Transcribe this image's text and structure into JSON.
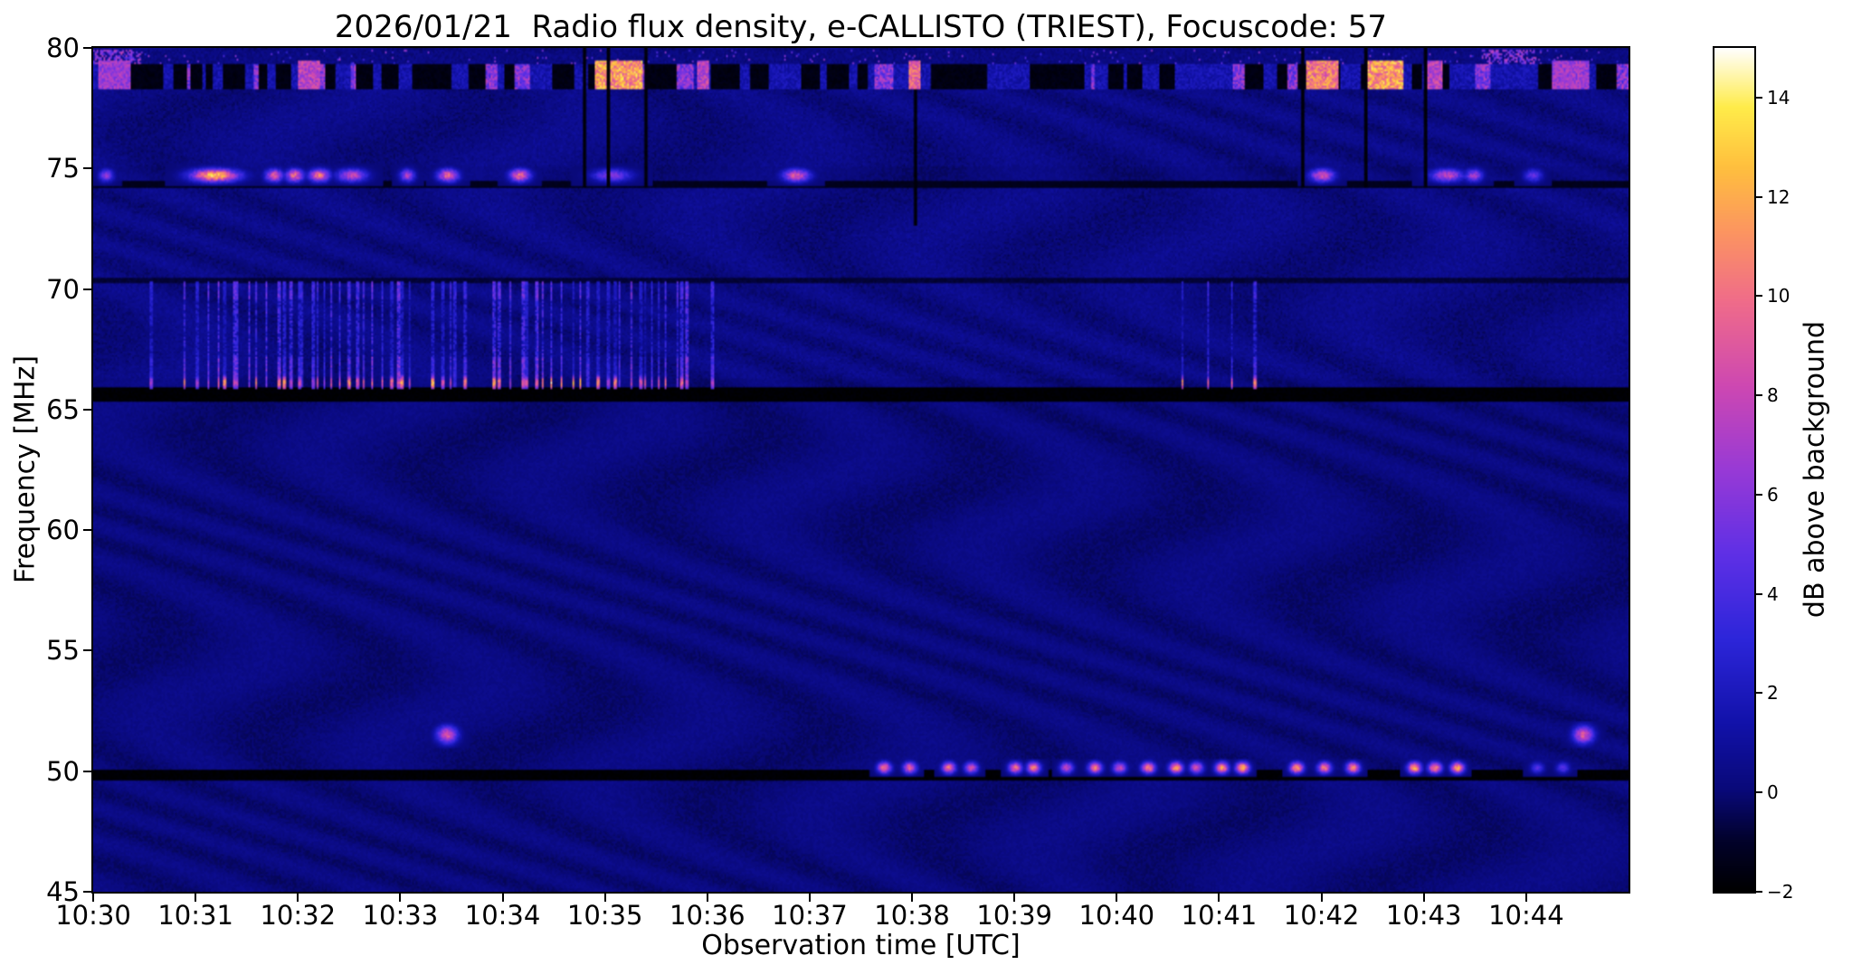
{
  "chart_data": {
    "type": "heatmap",
    "title": "2026/01/21  Radio flux density, e-CALLISTO (TRIEST), Focuscode: 57",
    "xlabel": "Observation time [UTC]",
    "ylabel": "Frequency [MHz]",
    "x_tick_labels": [
      "10:30",
      "10:31",
      "10:32",
      "10:33",
      "10:34",
      "10:35",
      "10:36",
      "10:37",
      "10:38",
      "10:39",
      "10:40",
      "10:41",
      "10:42",
      "10:43",
      "10:44"
    ],
    "x_range_minutes": [
      0,
      15
    ],
    "y_tick_values": [
      45,
      50,
      55,
      60,
      65,
      70,
      75,
      80
    ],
    "y_range_mhz": [
      45,
      80
    ],
    "grid_off": true,
    "legend": "none",
    "colorbar": {
      "label": "dB above background",
      "tick_values": [
        -2,
        0,
        2,
        4,
        6,
        8,
        10,
        12,
        14
      ],
      "tick_labels": [
        "−2",
        "0",
        "2",
        "4",
        "6",
        "8",
        "10",
        "12",
        "14"
      ],
      "value_range": [
        -2,
        15
      ],
      "colormap_stops": [
        [
          0.0,
          [
            0,
            0,
            0
          ]
        ],
        [
          0.06,
          [
            2,
            2,
            42
          ]
        ],
        [
          0.12,
          [
            9,
            9,
            120
          ]
        ],
        [
          0.2,
          [
            18,
            18,
            170
          ]
        ],
        [
          0.3,
          [
            45,
            38,
            218
          ]
        ],
        [
          0.4,
          [
            95,
            48,
            230
          ]
        ],
        [
          0.5,
          [
            152,
            58,
            214
          ]
        ],
        [
          0.6,
          [
            206,
            72,
            178
          ]
        ],
        [
          0.7,
          [
            240,
            108,
            138
          ]
        ],
        [
          0.78,
          [
            252,
            148,
            98
          ]
        ],
        [
          0.86,
          [
            255,
            192,
            62
          ]
        ],
        [
          0.93,
          [
            255,
            236,
            74
          ]
        ],
        [
          1.0,
          [
            255,
            255,
            255
          ]
        ]
      ]
    },
    "features": {
      "noise": {
        "base_db": 0.15,
        "amplitude_db": 0.55,
        "ripple_amplitude_db": 0.33
      },
      "black_lines": [
        {
          "f0": 49.72,
          "f1": 50.08,
          "db": -1.9
        },
        {
          "f0": 65.38,
          "f1": 65.94,
          "db": -1.9
        },
        {
          "f0": 74.3,
          "f1": 74.52,
          "db": -1.3
        },
        {
          "f0": 70.33,
          "f1": 70.48,
          "db": -0.8
        }
      ],
      "top_band": {
        "f0": 78.35,
        "f1": 79.3,
        "f2": 79.95,
        "black_fraction": 0.45,
        "bursts": [
          [
            0.05,
            0.35,
            7
          ],
          [
            2.0,
            2.2,
            8
          ],
          [
            4.9,
            5.35,
            12
          ],
          [
            5.9,
            6.0,
            8
          ],
          [
            7.97,
            8.07,
            10
          ],
          [
            11.85,
            12.15,
            11
          ],
          [
            12.45,
            12.78,
            12
          ],
          [
            13.02,
            13.16,
            8
          ],
          [
            14.25,
            14.6,
            7
          ]
        ]
      },
      "band_75": {
        "f_center": 74.75,
        "f0": 74.35,
        "f1": 75.2,
        "bursts": [
          [
            0.12,
            0.05,
            6
          ],
          [
            1.18,
            0.16,
            13
          ],
          [
            1.76,
            0.06,
            9
          ],
          [
            1.96,
            0.06,
            10
          ],
          [
            2.2,
            0.07,
            10
          ],
          [
            2.52,
            0.1,
            8
          ],
          [
            3.06,
            0.05,
            7
          ],
          [
            3.46,
            0.07,
            10
          ],
          [
            4.16,
            0.07,
            10
          ],
          [
            5.06,
            0.13,
            6
          ],
          [
            6.86,
            0.09,
            9
          ],
          [
            12.0,
            0.08,
            9
          ],
          [
            13.22,
            0.11,
            8
          ],
          [
            13.48,
            0.06,
            7
          ],
          [
            14.06,
            0.06,
            5
          ]
        ]
      },
      "striations": {
        "f0": 66.0,
        "f1": 70.35,
        "base_f0": 65.95,
        "base_f1": 66.5,
        "base_center": 66.15,
        "dense_intervals": [
          [
            1.0,
            3.12
          ],
          [
            3.3,
            3.66
          ],
          [
            3.9,
            5.78
          ]
        ],
        "sparse_intervals": [
          [
            0.55,
            1.0
          ],
          [
            5.78,
            6.15
          ]
        ],
        "extra_times": [
          10.63,
          10.88,
          11.12,
          11.33
        ]
      },
      "bursts_50": {
        "f_peak": 50.18,
        "f0": 49.85,
        "f1": 50.52,
        "times": [
          7.72,
          7.97,
          8.35,
          8.57,
          9.0,
          9.18,
          9.5,
          9.78,
          10.02,
          10.3,
          10.57,
          10.77,
          11.02,
          11.22,
          11.75,
          12.02,
          12.3,
          12.9,
          13.1,
          13.32
        ],
        "faint_times": [
          14.1,
          14.35
        ]
      },
      "blobs_515": {
        "f_center": 51.55,
        "times": [
          3.45,
          14.55
        ],
        "peak_db": 9
      },
      "dropouts": [
        [
          4.78,
          74.3,
          80
        ],
        [
          5.02,
          74.3,
          80
        ],
        [
          5.38,
          74.3,
          80
        ],
        [
          8.02,
          72.7,
          78.3
        ],
        [
          11.8,
          74.3,
          80
        ],
        [
          12.42,
          74.3,
          80
        ],
        [
          13.0,
          74.3,
          80
        ]
      ]
    }
  }
}
